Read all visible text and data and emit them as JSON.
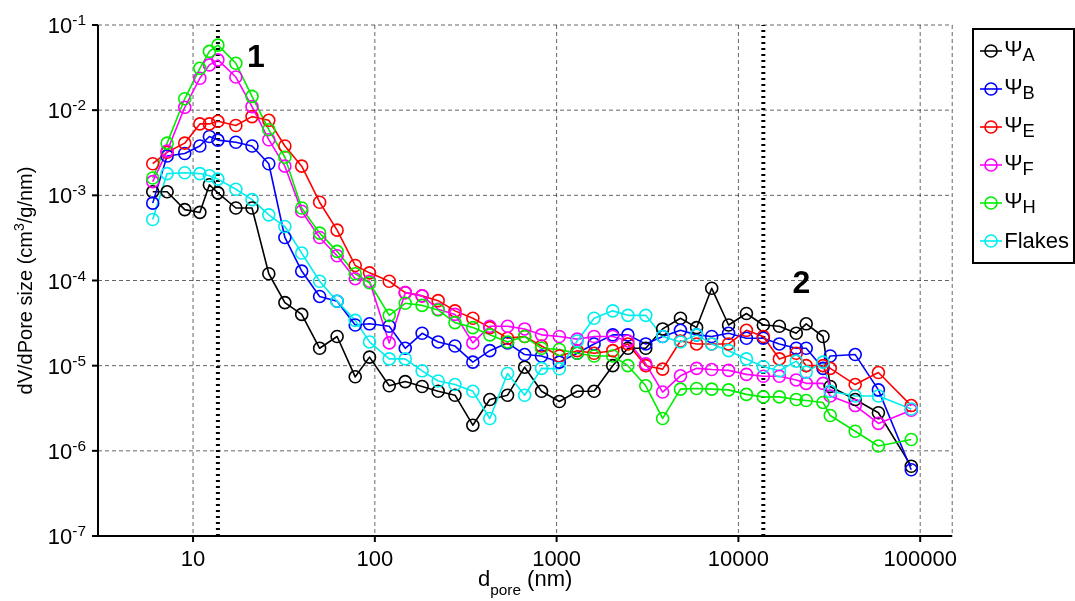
{
  "chart_data": {
    "type": "line",
    "xlabel": "d$_{pore}$ (nm)",
    "ylabel": "dV/dPore size (cm$^{3}$/g/nm)",
    "log": "xy",
    "grid": true,
    "legend": "top right",
    "marker": "circle",
    "line_style": "solid",
    "xlim": [
      3,
      150000
    ],
    "xticks": [
      10,
      100,
      1000,
      10000,
      100000
    ],
    "ylim": [
      1e-07,
      0.1
    ],
    "yticks": [
      {
        "value": 1e-07,
        "label": "10$^{-7}$"
      },
      {
        "value": 1e-06,
        "label": "10$^{-6}$"
      },
      {
        "value": 1e-05,
        "label": "10$^{-5}$"
      },
      {
        "value": 0.0001,
        "label": "10$^{-4}$"
      },
      {
        "value": 0.001,
        "label": "10$^{-3}$"
      },
      {
        "value": 0.01,
        "label": "10$^{-2}$"
      },
      {
        "value": 0.1,
        "label": "10$^{-1}$"
      }
    ],
    "x": [
      6.0,
      7.2,
      9.0,
      10.9,
      12.3,
      13.7,
      17.2,
      21.1,
      26.1,
      32,
      39.6,
      49.7,
      62,
      78,
      93.5,
      120,
      147,
      182,
      223,
      276,
      346,
      429,
      537,
      667,
      826,
      1035,
      1298,
      1607,
      2036,
      2466,
      3093,
      3830,
      4800,
      5890,
      7130,
      8830,
      11070,
      13710,
      16800,
      20800,
      23600,
      29200,
      32000,
      43900,
      58900,
      89300
    ],
    "series": [
      {
        "name": "Ψ$_{A}$",
        "color": "#000000",
        "values": [
          0.0011,
          0.0011,
          0.00068,
          0.00063,
          0.00133,
          0.00107,
          0.00071,
          0.00071,
          0.00012,
          5.5e-05,
          4e-05,
          1.6e-05,
          2.2e-05,
          7.4e-06,
          1.26e-05,
          5.8e-06,
          6.5e-06,
          5.7e-06,
          5e-06,
          4.5e-06,
          2e-06,
          4e-06,
          4.5e-06,
          9.6e-06,
          5e-06,
          3.8e-06,
          5e-06,
          5e-06,
          1e-05,
          1.6e-05,
          1.6e-05,
          2.7e-05,
          3.6e-05,
          2.8e-05,
          8.1e-05,
          3e-05,
          4.1e-05,
          3e-05,
          2.9e-05,
          2.4e-05,
          3.1e-05,
          2.2e-05,
          5.7e-06,
          4e-06,
          2.8e-06,
          6.6e-07
        ]
      },
      {
        "name": "Ψ$_{B}$",
        "color": "#0000ff",
        "values": [
          0.00081,
          0.0029,
          0.0031,
          0.0038,
          0.0049,
          0.00445,
          0.0042,
          0.0038,
          0.00235,
          0.00032,
          0.000129,
          6.5e-05,
          5.7e-05,
          3e-05,
          3.1e-05,
          2.9e-05,
          1.6e-05,
          2.4e-05,
          1.9e-05,
          1.7e-05,
          1.1e-05,
          1.5e-05,
          1.85e-05,
          1.35e-05,
          1.3e-05,
          1.1e-05,
          1.4e-05,
          1.8e-05,
          2.3e-05,
          2.3e-05,
          1.8e-05,
          2.2e-05,
          2.6e-05,
          2.3e-05,
          2.2e-05,
          2.4e-05,
          2.1e-05,
          2.1e-05,
          1.8e-05,
          1.6e-05,
          1.6e-05,
          9.3e-06,
          1.3e-05,
          1.35e-05,
          5.2e-06,
          6e-07
        ]
      },
      {
        "name": "Ψ$_{E}$",
        "color": "#ff0000",
        "values": [
          0.00235,
          0.0032,
          0.0041,
          0.0069,
          0.0069,
          0.0074,
          0.0066,
          0.0084,
          0.0076,
          0.0038,
          0.0022,
          0.00083,
          0.00039,
          0.00015,
          0.000123,
          9.8e-05,
          7.2e-05,
          6.6e-05,
          5.8e-05,
          4.4e-05,
          3.6e-05,
          2.8e-05,
          2.1e-05,
          2.2e-05,
          1.7e-05,
          1.3e-05,
          1.5e-05,
          1.4e-05,
          1.5e-05,
          1.8e-05,
          1e-05,
          9.1e-06,
          1.95e-05,
          1.8e-05,
          1.8e-05,
          1.8e-05,
          2.6e-05,
          2.2e-05,
          1.2e-05,
          1.4e-05,
          1e-05,
          1e-05,
          9.3e-06,
          6e-06,
          8.3e-06,
          3.4e-06
        ]
      },
      {
        "name": "Ψ$_{F}$",
        "color": "#ff00ff",
        "values": [
          0.00145,
          0.0033,
          0.0108,
          0.0237,
          0.034,
          0.039,
          0.0245,
          0.011,
          0.0045,
          0.0022,
          0.00065,
          0.00032,
          0.000195,
          0.000105,
          9.8e-05,
          1.85e-05,
          7.2e-05,
          6.6e-05,
          4.6e-05,
          4e-05,
          1.85e-05,
          2.9e-05,
          2.9e-05,
          2.7e-05,
          2.3e-05,
          2.2e-05,
          2.05e-05,
          2.2e-05,
          2.2e-05,
          1.95e-05,
          1.05e-05,
          4.9e-06,
          7.6e-06,
          9.3e-06,
          9e-06,
          8.8e-06,
          7.9e-06,
          7.5e-06,
          7.5e-06,
          6.8e-06,
          6.2e-06,
          6.2e-06,
          4.4e-06,
          3.4e-06,
          2.1e-06,
          3e-06
        ]
      },
      {
        "name": "Ψ$_{H}$",
        "color": "#00ee00",
        "values": [
          0.0016,
          0.0041,
          0.0136,
          0.031,
          0.049,
          0.058,
          0.0355,
          0.0145,
          0.0059,
          0.0028,
          0.00071,
          0.00036,
          0.00022,
          0.00012,
          9.4e-05,
          3.9e-05,
          5.4e-05,
          5.1e-05,
          4.5e-05,
          3.2e-05,
          2.8e-05,
          2.3e-05,
          1.9e-05,
          2.2e-05,
          1.6e-05,
          1.55e-05,
          1.4e-05,
          1.3e-05,
          1.3e-05,
          1e-05,
          5.8e-06,
          2.4e-06,
          5.3e-06,
          5.4e-06,
          5.3e-06,
          5.2e-06,
          4.6e-06,
          4.3e-06,
          4.3e-06,
          4e-06,
          3.9e-06,
          3.7e-06,
          2.6e-06,
          1.7e-06,
          1.14e-06,
          1.36e-06
        ]
      },
      {
        "name": "Flakes",
        "color": "#00eeee",
        "values": [
          0.00052,
          0.0018,
          0.00184,
          0.0018,
          0.0017,
          0.00155,
          0.00118,
          0.00089,
          0.00059,
          0.00043,
          0.00021,
          9.8e-05,
          5.7e-05,
          3.4e-05,
          1.9e-05,
          1.2e-05,
          1.2e-05,
          8.7e-06,
          6.6e-06,
          6e-06,
          5e-06,
          2.4e-06,
          8.1e-06,
          4.5e-06,
          9.3e-06,
          9.2e-06,
          1.95e-05,
          3.6e-05,
          4.4e-05,
          3.9e-05,
          3.9e-05,
          2.2e-05,
          1.9e-05,
          2.3e-05,
          1.8e-05,
          1.5e-05,
          1.2e-05,
          9.7e-06,
          8.7e-06,
          1.13e-05,
          8.4e-06,
          1.1e-05,
          5e-06,
          4.4e-06,
          4.4e-06,
          3.1e-06
        ]
      }
    ],
    "ref_lines": [
      {
        "axis": "x",
        "value": 13.7,
        "color": "#000000",
        "line_style": "dotted"
      },
      {
        "axis": "x",
        "value": 13710,
        "color": "#000000",
        "line_style": "dotted"
      }
    ],
    "annotations": [
      "1",
      "2"
    ]
  }
}
